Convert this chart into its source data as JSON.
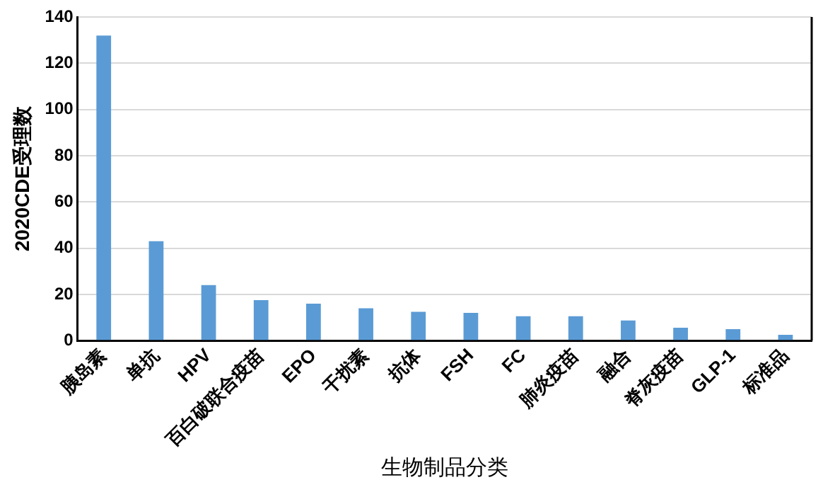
{
  "chart_data": {
    "type": "bar",
    "xlabel": "生物制品分类",
    "ylabel": "2020CDE受理数",
    "categories": [
      "胰岛素",
      "单抗",
      "HPV",
      "百白破联合疫苗",
      "EPO",
      "干扰素",
      "抗体",
      "FSH",
      "FC",
      "肺炎疫苗",
      "融合",
      "脊灰疫苗",
      "GLP-1",
      "标准品"
    ],
    "values": [
      132,
      43,
      24,
      17.5,
      16,
      14,
      12.5,
      12,
      10.6,
      10.6,
      8.7,
      5.6,
      5,
      2.5
    ],
    "color": "#5b9bd5",
    "ylim": [
      0,
      140
    ],
    "yticks": [
      0,
      20,
      40,
      60,
      80,
      100,
      120,
      140
    ],
    "grid": "y",
    "legend": false
  }
}
